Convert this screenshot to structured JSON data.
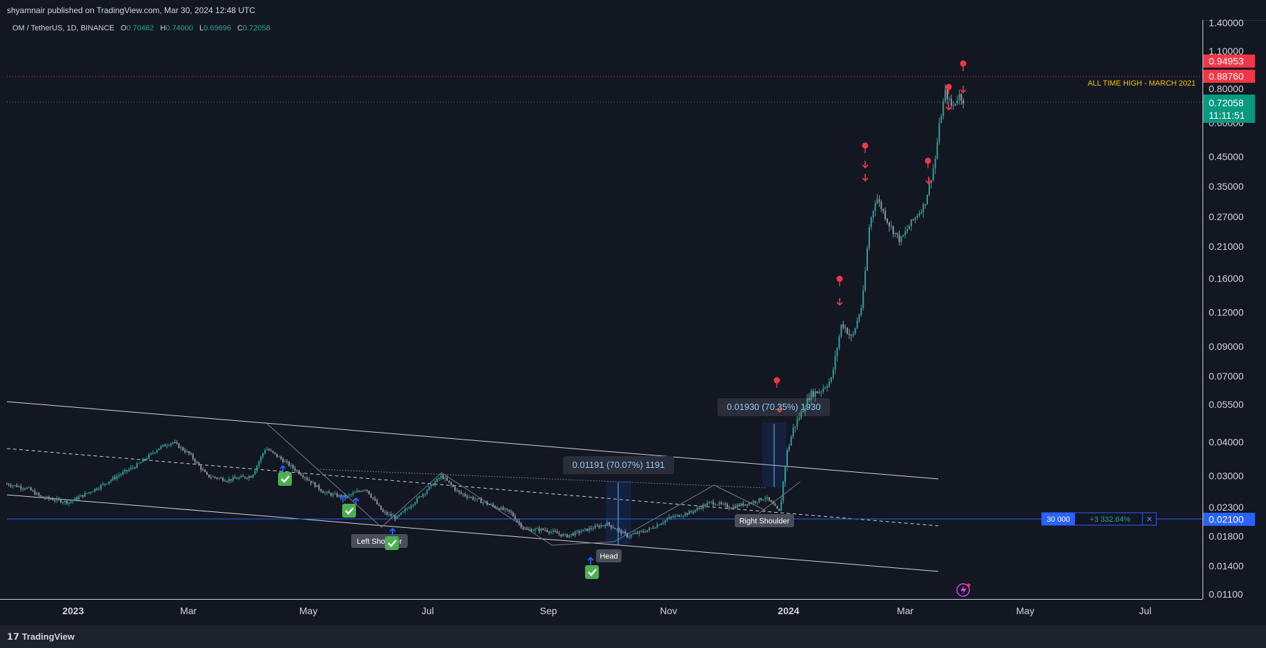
{
  "header": {
    "published": "shyamnair published on TradingView.com, Mar 30, 2024 12:48 UTC"
  },
  "legend": {
    "symbol": "OM / TetherUS, 1D, BINANCE",
    "open_label": "O",
    "open": "0.70462",
    "high_label": "H",
    "high": "0.74000",
    "low_label": "L",
    "low": "0.69696",
    "close_label": "C",
    "close": "0.72058"
  },
  "footer": {
    "brand": "TradingView"
  },
  "colors": {
    "bg": "#131722",
    "up": "#26a69a",
    "down": "#9598a1",
    "marker": "#f23645",
    "accent_blue": "#2962ff",
    "ath_label": "#f5c400"
  },
  "chart_data": {
    "type": "line",
    "scale": "log",
    "price_axis": [
      "1.40000",
      "1.10000",
      "0.80000",
      "0.60000",
      "0.45000",
      "0.35000",
      "0.27000",
      "0.21000",
      "0.16000",
      "0.12000",
      "0.09000",
      "0.07000",
      "0.05500",
      "0.04000",
      "0.03000",
      "0.02300",
      "0.01800",
      "0.01400",
      "0.01100"
    ],
    "time_axis": [
      "2023",
      "Mar",
      "May",
      "Jul",
      "Sep",
      "Nov",
      "2024",
      "Mar",
      "May",
      "Jul"
    ],
    "series": [
      {
        "x": [
          "2023-01",
          "2023-02",
          "2023-03",
          "2023-04",
          "2023-05",
          "2023-06",
          "2023-07",
          "2023-08",
          "2023-09",
          "2023-10",
          "2023-11",
          "2023-12",
          "2024-01",
          "2024-02",
          "2024-03"
        ],
        "values": [
          0.03,
          0.04,
          0.029,
          0.034,
          0.025,
          0.021,
          0.031,
          0.025,
          0.019,
          0.02,
          0.025,
          0.023,
          0.065,
          0.3,
          0.72
        ]
      }
    ],
    "price_labels": {
      "red_top": "0.94953",
      "red_bottom": "0.88760",
      "current": "0.72058",
      "countdown": "11:11:51",
      "hline": "0.02100"
    },
    "annotations": {
      "ath": "ALL TIME HIGH - MARCH 2021",
      "measure1": "0.01191 (70.07%) 1191",
      "measure2": "0.01930 (70.35%) 1930",
      "left_shoulder": "Left Shoulder",
      "head": "Head",
      "right_shoulder": "Right Shoulder",
      "position_qty": "30 000",
      "position_pct": "+3 332.64%",
      "position_close": "✕"
    }
  }
}
